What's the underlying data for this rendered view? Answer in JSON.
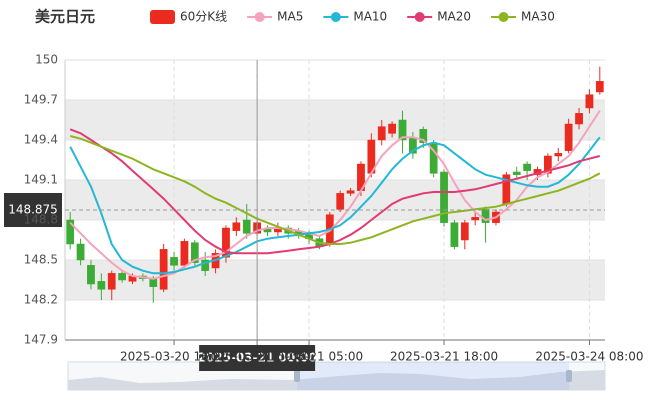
{
  "chart_data": {
    "type": "candlestick",
    "title": "美元日元",
    "categories": [
      null,
      null,
      null,
      null,
      null,
      null,
      null,
      null,
      null,
      null,
      "2025-03-20 16:00",
      null,
      null,
      null,
      null,
      null,
      null,
      null,
      "2025-03-21 00:00",
      null,
      null,
      null,
      null,
      "2025-03-21 05:00",
      null,
      null,
      null,
      null,
      null,
      null,
      null,
      null,
      null,
      null,
      null,
      null,
      "2025-03-21 18:00",
      null,
      null,
      null,
      null,
      null,
      null,
      null,
      null,
      null,
      null,
      null,
      null,
      null,
      "2025-03-24 08:00",
      null
    ],
    "series": [
      {
        "name": "60分K线",
        "type": "candlestick",
        "color": "#eb2b1f",
        "down_color": "#3dac36",
        "values": [
          [
            148.8,
            148.62,
            148.58,
            148.86
          ],
          [
            148.62,
            148.5,
            148.46,
            148.66
          ],
          [
            148.46,
            148.32,
            148.28,
            148.5
          ],
          [
            148.34,
            148.28,
            148.2,
            148.4
          ],
          [
            148.28,
            148.4,
            148.2,
            148.42
          ],
          [
            148.4,
            148.35,
            148.33,
            148.42
          ],
          [
            148.34,
            148.38,
            148.32,
            148.4
          ],
          [
            148.38,
            148.36,
            148.34,
            148.4
          ],
          [
            148.36,
            148.3,
            148.18,
            148.38
          ],
          [
            148.28,
            148.58,
            148.26,
            148.62
          ],
          [
            148.52,
            148.46,
            148.42,
            148.56
          ],
          [
            148.46,
            148.64,
            148.44,
            148.66
          ],
          [
            148.63,
            148.48,
            148.46,
            148.65
          ],
          [
            148.5,
            148.42,
            148.38,
            148.56
          ],
          [
            148.44,
            148.55,
            148.4,
            148.58
          ],
          [
            148.52,
            148.74,
            148.48,
            148.76
          ],
          [
            148.72,
            148.78,
            148.68,
            148.82
          ],
          [
            148.8,
            148.7,
            148.66,
            148.92
          ],
          [
            148.7,
            148.78,
            148.68,
            148.82
          ],
          [
            148.73,
            148.71,
            148.68,
            148.76
          ],
          [
            148.71,
            148.74,
            148.68,
            148.78
          ],
          [
            148.74,
            148.7,
            148.66,
            148.76
          ],
          [
            148.72,
            148.69,
            148.66,
            148.74
          ],
          [
            148.7,
            148.66,
            148.62,
            148.72
          ],
          [
            148.66,
            148.6,
            148.58,
            148.68
          ],
          [
            148.62,
            148.84,
            148.6,
            148.86
          ],
          [
            148.88,
            149.0,
            148.86,
            149.02
          ],
          [
            149.0,
            149.02,
            148.98,
            149.04
          ],
          [
            149.02,
            149.22,
            148.98,
            149.24
          ],
          [
            149.15,
            149.4,
            149.12,
            149.45
          ],
          [
            149.4,
            149.5,
            149.36,
            149.55
          ],
          [
            149.45,
            149.52,
            149.42,
            149.54
          ],
          [
            149.55,
            149.4,
            149.3,
            149.62
          ],
          [
            149.42,
            149.3,
            149.26,
            149.46
          ],
          [
            149.48,
            149.38,
            149.34,
            149.5
          ],
          [
            149.38,
            149.15,
            149.12,
            149.4
          ],
          [
            149.16,
            148.78,
            148.75,
            149.18
          ],
          [
            148.78,
            148.6,
            148.58,
            148.8
          ],
          [
            148.65,
            148.78,
            148.58,
            148.8
          ],
          [
            148.8,
            148.82,
            148.76,
            148.86
          ],
          [
            148.88,
            148.78,
            148.63,
            148.9
          ],
          [
            148.78,
            148.86,
            148.76,
            148.88
          ],
          [
            148.92,
            149.14,
            148.9,
            149.16
          ],
          [
            149.16,
            149.14,
            149.1,
            149.2
          ],
          [
            149.22,
            149.17,
            149.1,
            149.24
          ],
          [
            149.14,
            149.18,
            149.1,
            149.2
          ],
          [
            149.15,
            149.28,
            149.12,
            149.3
          ],
          [
            149.28,
            149.3,
            149.24,
            149.34
          ],
          [
            149.32,
            149.52,
            149.3,
            149.56
          ],
          [
            149.52,
            149.6,
            149.48,
            149.64
          ],
          [
            149.64,
            149.74,
            149.6,
            149.78
          ],
          [
            149.76,
            149.84,
            149.74,
            149.95
          ]
        ]
      },
      {
        "name": "MA5",
        "type": "line",
        "color": "#f5a3bb",
        "values": [
          148.78,
          148.7,
          148.62,
          148.55,
          148.48,
          148.42,
          148.38,
          148.37,
          148.36,
          148.38,
          148.4,
          148.45,
          148.5,
          148.52,
          148.53,
          148.56,
          148.62,
          148.68,
          148.72,
          148.74,
          148.74,
          148.73,
          148.72,
          148.7,
          148.68,
          148.72,
          148.8,
          148.9,
          149.02,
          149.15,
          149.28,
          149.36,
          149.42,
          149.42,
          149.4,
          149.32,
          149.22,
          149.08,
          148.95,
          148.86,
          148.8,
          148.82,
          148.88,
          148.95,
          149.05,
          149.12,
          149.16,
          149.22,
          149.28,
          149.38,
          149.5,
          149.62
        ]
      },
      {
        "name": "MA10",
        "type": "line",
        "color": "#22b8d6",
        "values": [
          149.35,
          149.2,
          149.05,
          148.85,
          148.62,
          148.5,
          148.45,
          148.42,
          148.4,
          148.4,
          148.41,
          148.43,
          148.45,
          148.48,
          148.5,
          148.53,
          148.56,
          148.6,
          148.64,
          148.66,
          148.67,
          148.68,
          148.69,
          148.7,
          148.71,
          148.73,
          148.76,
          148.82,
          148.9,
          148.98,
          149.08,
          149.18,
          149.26,
          149.32,
          149.36,
          149.38,
          149.36,
          149.3,
          149.24,
          149.18,
          149.14,
          149.12,
          149.1,
          149.08,
          149.06,
          149.05,
          149.05,
          149.08,
          149.14,
          149.22,
          149.32,
          149.42
        ]
      },
      {
        "name": "MA20",
        "type": "line",
        "color": "#e23a72",
        "values": [
          149.48,
          149.45,
          149.4,
          149.35,
          149.3,
          149.24,
          149.17,
          149.1,
          149.03,
          148.96,
          148.88,
          148.8,
          148.72,
          148.65,
          148.6,
          148.56,
          148.55,
          148.55,
          148.55,
          148.55,
          148.56,
          148.57,
          148.58,
          148.59,
          148.6,
          148.62,
          148.65,
          148.69,
          148.74,
          148.8,
          148.86,
          148.92,
          148.96,
          148.98,
          149.0,
          149.01,
          149.01,
          149.01,
          149.02,
          149.03,
          149.05,
          149.07,
          149.09,
          149.11,
          149.13,
          149.15,
          149.17,
          149.19,
          149.21,
          149.24,
          149.26,
          149.28
        ]
      },
      {
        "name": "MA30",
        "type": "line",
        "color": "#8db51f",
        "values": [
          149.43,
          149.41,
          149.38,
          149.35,
          149.32,
          149.29,
          149.26,
          149.22,
          149.18,
          149.15,
          149.12,
          149.09,
          149.05,
          149.0,
          148.96,
          148.93,
          148.89,
          148.85,
          148.81,
          148.78,
          148.75,
          148.72,
          148.69,
          148.66,
          148.63,
          148.62,
          148.62,
          148.63,
          148.65,
          148.67,
          148.7,
          148.73,
          148.76,
          148.79,
          148.81,
          148.83,
          148.85,
          148.86,
          148.87,
          148.88,
          148.89,
          148.9,
          148.92,
          148.94,
          148.96,
          148.98,
          149.0,
          149.02,
          149.05,
          149.08,
          149.11,
          149.15
        ]
      }
    ],
    "ylim": [
      147.9,
      150
    ],
    "yticks": [
      147.9,
      148.2,
      148.5,
      148.8,
      149.1,
      149.4,
      149.7,
      150
    ],
    "split_area": true,
    "grid": true,
    "pointer_category": "2025-03-21 00:00",
    "pointer_value": 148.875
  }
}
